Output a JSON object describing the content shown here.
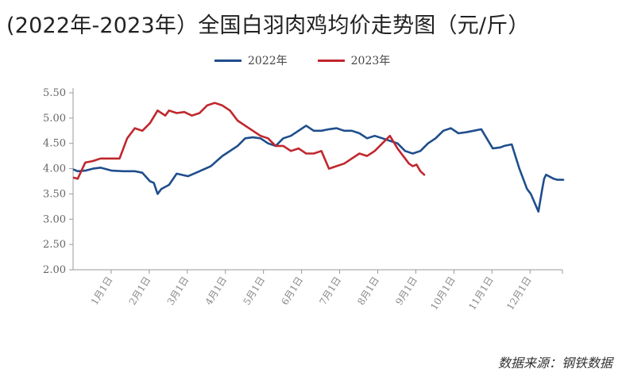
{
  "chart_data": {
    "type": "line",
    "title": "(2022年-2023年）全国白羽肉鸡均价走势图（元/斤）",
    "source": "数据来源：钢铁数据",
    "ylim": [
      2.0,
      5.5
    ],
    "yticks": [
      "2.00",
      "2.50",
      "3.00",
      "3.50",
      "4.00",
      "4.50",
      "5.00",
      "5.50"
    ],
    "categories": [
      "1月1日",
      "2月1日",
      "3月1日",
      "4月1日",
      "5月1日",
      "6月1日",
      "7月1日",
      "8月1日",
      "9月1日",
      "10月1日",
      "11月1日",
      "12月1日"
    ],
    "legend_position": "top",
    "series": [
      {
        "name": "2022年",
        "color": "#1f4e8c",
        "x": [
          0,
          0.1,
          0.3,
          0.5,
          0.7,
          1.0,
          1.3,
          1.6,
          1.8,
          2.0,
          2.1,
          2.2,
          2.3,
          2.5,
          2.7,
          3.0,
          3.3,
          3.6,
          3.9,
          4.0,
          4.3,
          4.5,
          4.7,
          4.9,
          5.1,
          5.3,
          5.5,
          5.7,
          5.9,
          6.1,
          6.3,
          6.5,
          6.7,
          6.9,
          7.1,
          7.3,
          7.5,
          7.7,
          7.9,
          8.1,
          8.3,
          8.5,
          8.7,
          8.9,
          9.1,
          9.3,
          9.5,
          9.7,
          9.9,
          10.1,
          10.3,
          10.5,
          10.7,
          11.0,
          11.2,
          11.3,
          11.5,
          11.7,
          11.9,
          12.0,
          12.2,
          12.3,
          12.35,
          12.4,
          12.45,
          12.5,
          12.6,
          12.7,
          12.85
        ],
        "values": [
          3.98,
          3.95,
          3.96,
          4.0,
          4.02,
          3.96,
          3.95,
          3.95,
          3.92,
          3.75,
          3.72,
          3.5,
          3.6,
          3.68,
          3.9,
          3.85,
          3.95,
          4.05,
          4.25,
          4.3,
          4.45,
          4.6,
          4.62,
          4.6,
          4.5,
          4.45,
          4.6,
          4.65,
          4.75,
          4.85,
          4.75,
          4.75,
          4.78,
          4.8,
          4.75,
          4.75,
          4.7,
          4.6,
          4.65,
          4.6,
          4.55,
          4.5,
          4.35,
          4.3,
          4.35,
          4.5,
          4.6,
          4.75,
          4.8,
          4.7,
          4.72,
          4.75,
          4.78,
          4.4,
          4.42,
          4.45,
          4.48,
          4.0,
          3.6,
          3.5,
          3.15,
          3.6,
          3.8,
          3.88,
          3.86,
          3.84,
          3.8,
          3.78,
          3.78
        ]
      },
      {
        "name": "2023年",
        "color": "#c0272d",
        "x": [
          0,
          0.1,
          0.3,
          0.5,
          0.7,
          1.0,
          1.2,
          1.4,
          1.6,
          1.8,
          2.0,
          2.2,
          2.4,
          2.5,
          2.7,
          2.9,
          3.1,
          3.3,
          3.5,
          3.7,
          3.9,
          4.1,
          4.3,
          4.5,
          4.7,
          4.9,
          5.1,
          5.3,
          5.5,
          5.7,
          5.9,
          6.1,
          6.3,
          6.5,
          6.7,
          6.9,
          7.1,
          7.3,
          7.5,
          7.7,
          7.9,
          8.1,
          8.3,
          8.5,
          8.7,
          8.8,
          8.9,
          9.0,
          9.1,
          9.2
        ],
        "values": [
          3.82,
          3.8,
          4.12,
          4.15,
          4.2,
          4.2,
          4.2,
          4.6,
          4.8,
          4.75,
          4.9,
          5.15,
          5.05,
          5.15,
          5.1,
          5.12,
          5.05,
          5.1,
          5.25,
          5.3,
          5.25,
          5.15,
          4.95,
          4.85,
          4.75,
          4.65,
          4.6,
          4.45,
          4.45,
          4.35,
          4.4,
          4.3,
          4.3,
          4.35,
          4.0,
          4.05,
          4.1,
          4.2,
          4.3,
          4.25,
          4.35,
          4.5,
          4.65,
          4.4,
          4.2,
          4.1,
          4.05,
          4.08,
          3.95,
          3.88
        ]
      }
    ]
  }
}
